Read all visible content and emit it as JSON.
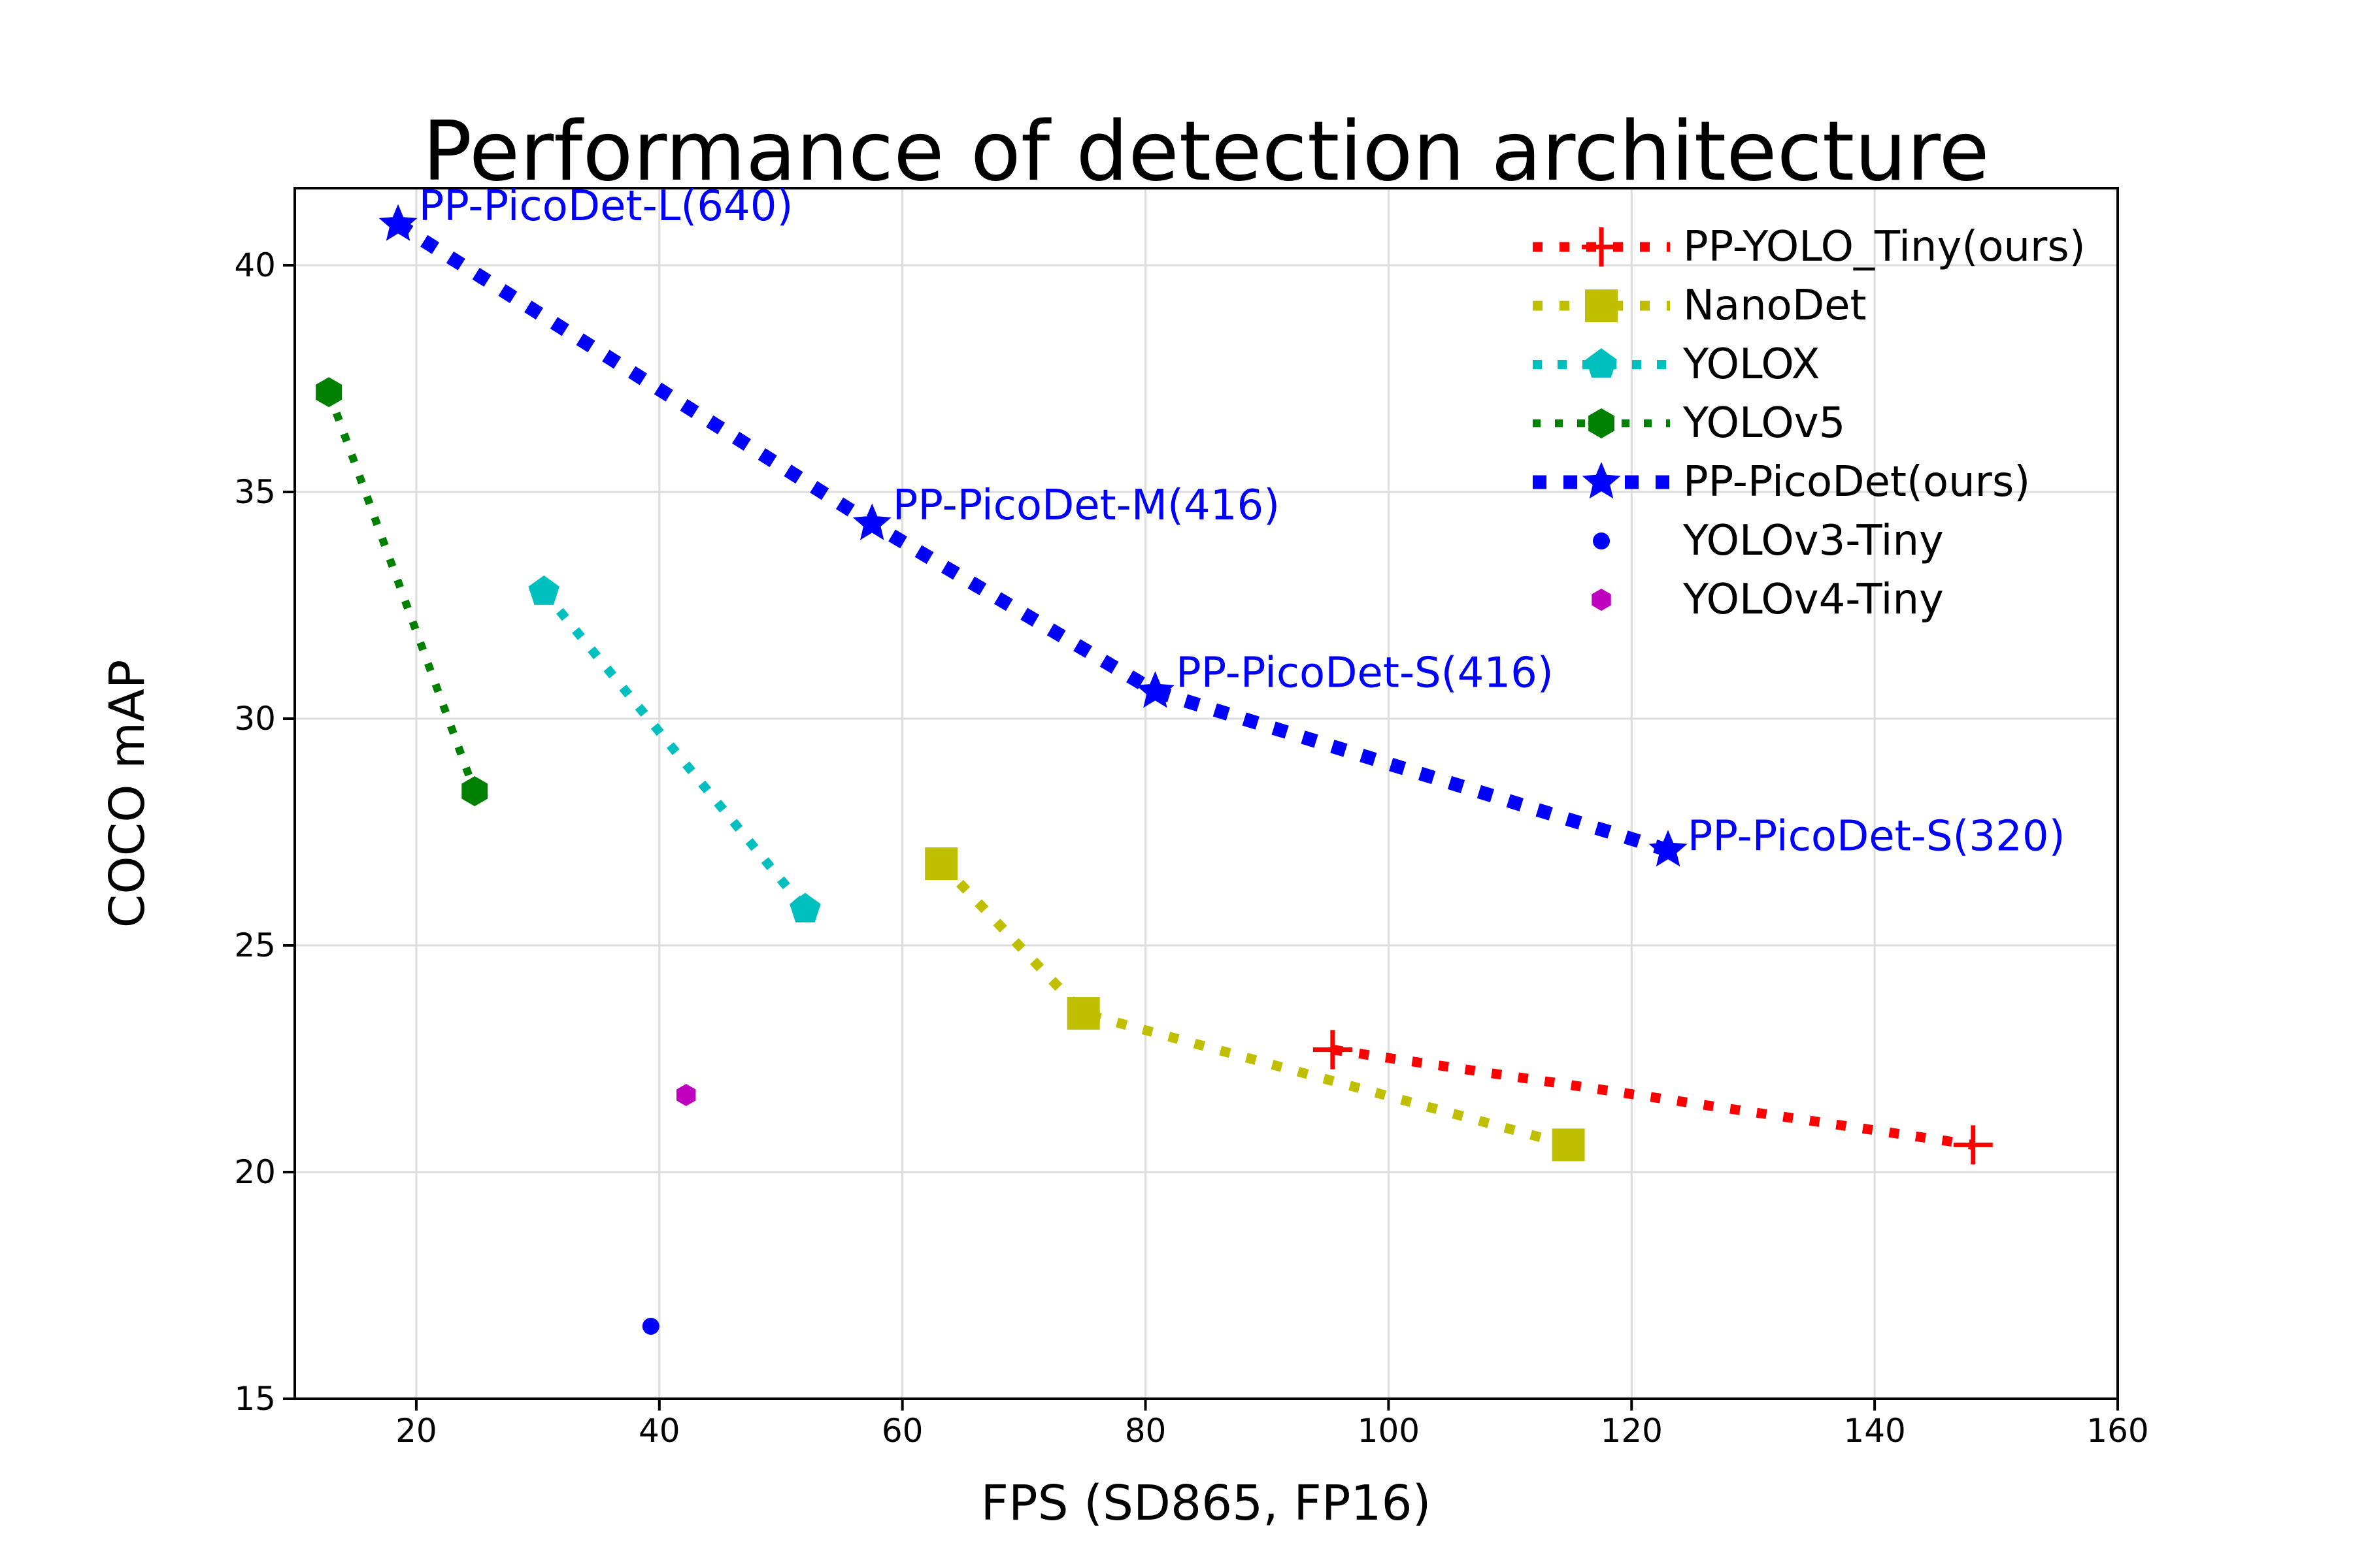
{
  "chart": {
    "title": "Performance of detection architecture",
    "xlabel": "FPS (SD865, FP16)",
    "ylabel": "COCO mAP"
  },
  "chart_data": {
    "type": "line",
    "title": "Performance of detection architecture",
    "xlabel": "FPS (SD865, FP16)",
    "ylabel": "COCO mAP",
    "xlim": [
      10,
      160
    ],
    "ylim": [
      15,
      41.7
    ],
    "xticks": [
      20,
      40,
      60,
      80,
      100,
      120,
      140,
      160
    ],
    "yticks": [
      15,
      20,
      25,
      30,
      35,
      40
    ],
    "grid": true,
    "grid_color": "#DCDCDC",
    "background": "#FFFFFF",
    "legend_position": "upper right",
    "annotation_color": "#0000FF",
    "series": [
      {
        "name": "PP-YOLO_Tiny(ours)",
        "color": "#FF0000",
        "marker": "plus",
        "marker_size": 30,
        "line": "dotted",
        "line_width": 15,
        "dash": [
          15,
          26
        ],
        "points": [
          [
            95.4,
            22.7
          ],
          [
            148.1,
            20.6
          ]
        ]
      },
      {
        "name": "NanoDet",
        "color": "#BFBF00",
        "marker": "square",
        "marker_size": 25,
        "line": "dotted",
        "line_width": 15,
        "dash": [
          15,
          26
        ],
        "points": [
          [
            63.2,
            26.8
          ],
          [
            74.9,
            23.5
          ],
          [
            114.8,
            20.6
          ]
        ]
      },
      {
        "name": "YOLOX",
        "color": "#00BFBF",
        "marker": "pentagon",
        "marker_size": 25,
        "line": "dotted",
        "line_width": 14,
        "dash": [
          14,
          24
        ],
        "points": [
          [
            30.5,
            32.8
          ],
          [
            52.0,
            25.8
          ]
        ]
      },
      {
        "name": "YOLOv5",
        "color": "#008000",
        "marker": "hexagon",
        "marker_size": 23,
        "line": "dotted",
        "line_width": 12,
        "dash": [
          12,
          22
        ],
        "points": [
          [
            12.8,
            37.2
          ],
          [
            24.8,
            28.4
          ]
        ]
      },
      {
        "name": "PP-PicoDet(ours)",
        "color": "#0000FF",
        "marker": "star",
        "marker_size": 31,
        "line": "dotted",
        "line_width": 21,
        "dash": [
          21,
          26
        ],
        "points": [
          [
            18.5,
            40.9
          ],
          [
            57.5,
            34.3
          ],
          [
            80.8,
            30.6
          ],
          [
            123.0,
            27.1
          ]
        ]
      },
      {
        "name": "YOLOv3-Tiny",
        "color": "#0000FF",
        "marker": "circle",
        "marker_size": 13,
        "line": "none",
        "line_width": 0,
        "dash": null,
        "points": [
          [
            39.3,
            16.6
          ]
        ]
      },
      {
        "name": "YOLOv4-Tiny",
        "color": "#BF00BF",
        "marker": "hexagon",
        "marker_size": 17,
        "line": "none",
        "line_width": 0,
        "dash": null,
        "points": [
          [
            42.2,
            21.7
          ]
        ]
      }
    ],
    "annotations": [
      {
        "text": "PP-PicoDet-L(640)",
        "fps": 20.2,
        "map": 41.3
      },
      {
        "text": "PP-PicoDet-M(416)",
        "fps": 59.2,
        "map": 34.7
      },
      {
        "text": "PP-PicoDet-S(416)",
        "fps": 82.5,
        "map": 31.0
      },
      {
        "text": "PP-PicoDet-S(320)",
        "fps": 124.6,
        "map": 27.4
      }
    ]
  }
}
